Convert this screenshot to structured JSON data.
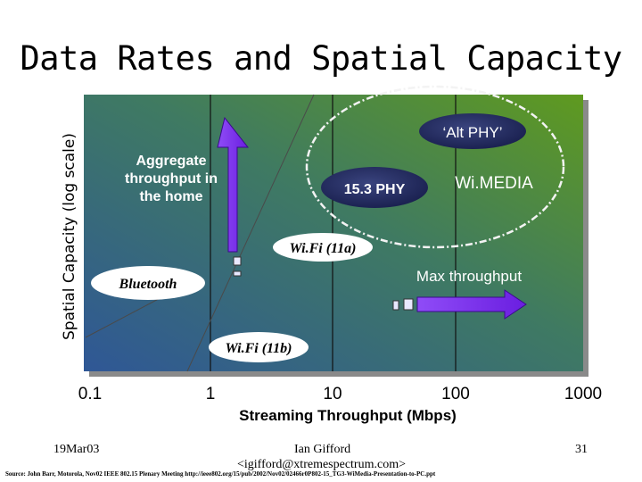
{
  "slide": {
    "title": "Data Rates and Spatial Capacity",
    "y_axis_label": "Spatial Capacity (log scale)",
    "x_axis_label": "Streaming Throughput (Mbps)",
    "x_ticks": [
      "0.1",
      "1",
      "10",
      "100",
      "1000"
    ]
  },
  "labels": {
    "aggregate": [
      "Aggregate",
      "throughput in",
      "the home"
    ],
    "alt_phy": "‘Alt PHY’",
    "phy153": "15.3 PHY",
    "wimedia": "Wi.MEDIA",
    "wifi_11a": "Wi.Fi (11a)",
    "max_throughput": "Max throughput",
    "bluetooth": "Bluetooth",
    "wifi_11b": "Wi.Fi (11b)"
  },
  "footer": {
    "date": "19Mar03",
    "author": "Ian Gifford",
    "email": "<igifford@xtremespectrum.com>",
    "page": "31",
    "source": "Source: John Barr, Motorola, Nov02 IEEE 802.15 Plenary Meeting http://ieee802.org/15/pub/2002/Nov02/02466r0P802-15_TG3-WiMedia-Presentation-to-PC.ppt"
  },
  "colors": {
    "plot_bottom_left": "#2f5796",
    "plot_top_right": "#5f9a1f",
    "bubble": "#232b66",
    "arrow": "#7a2cf0",
    "ellipse": "#f3f3f3"
  }
}
